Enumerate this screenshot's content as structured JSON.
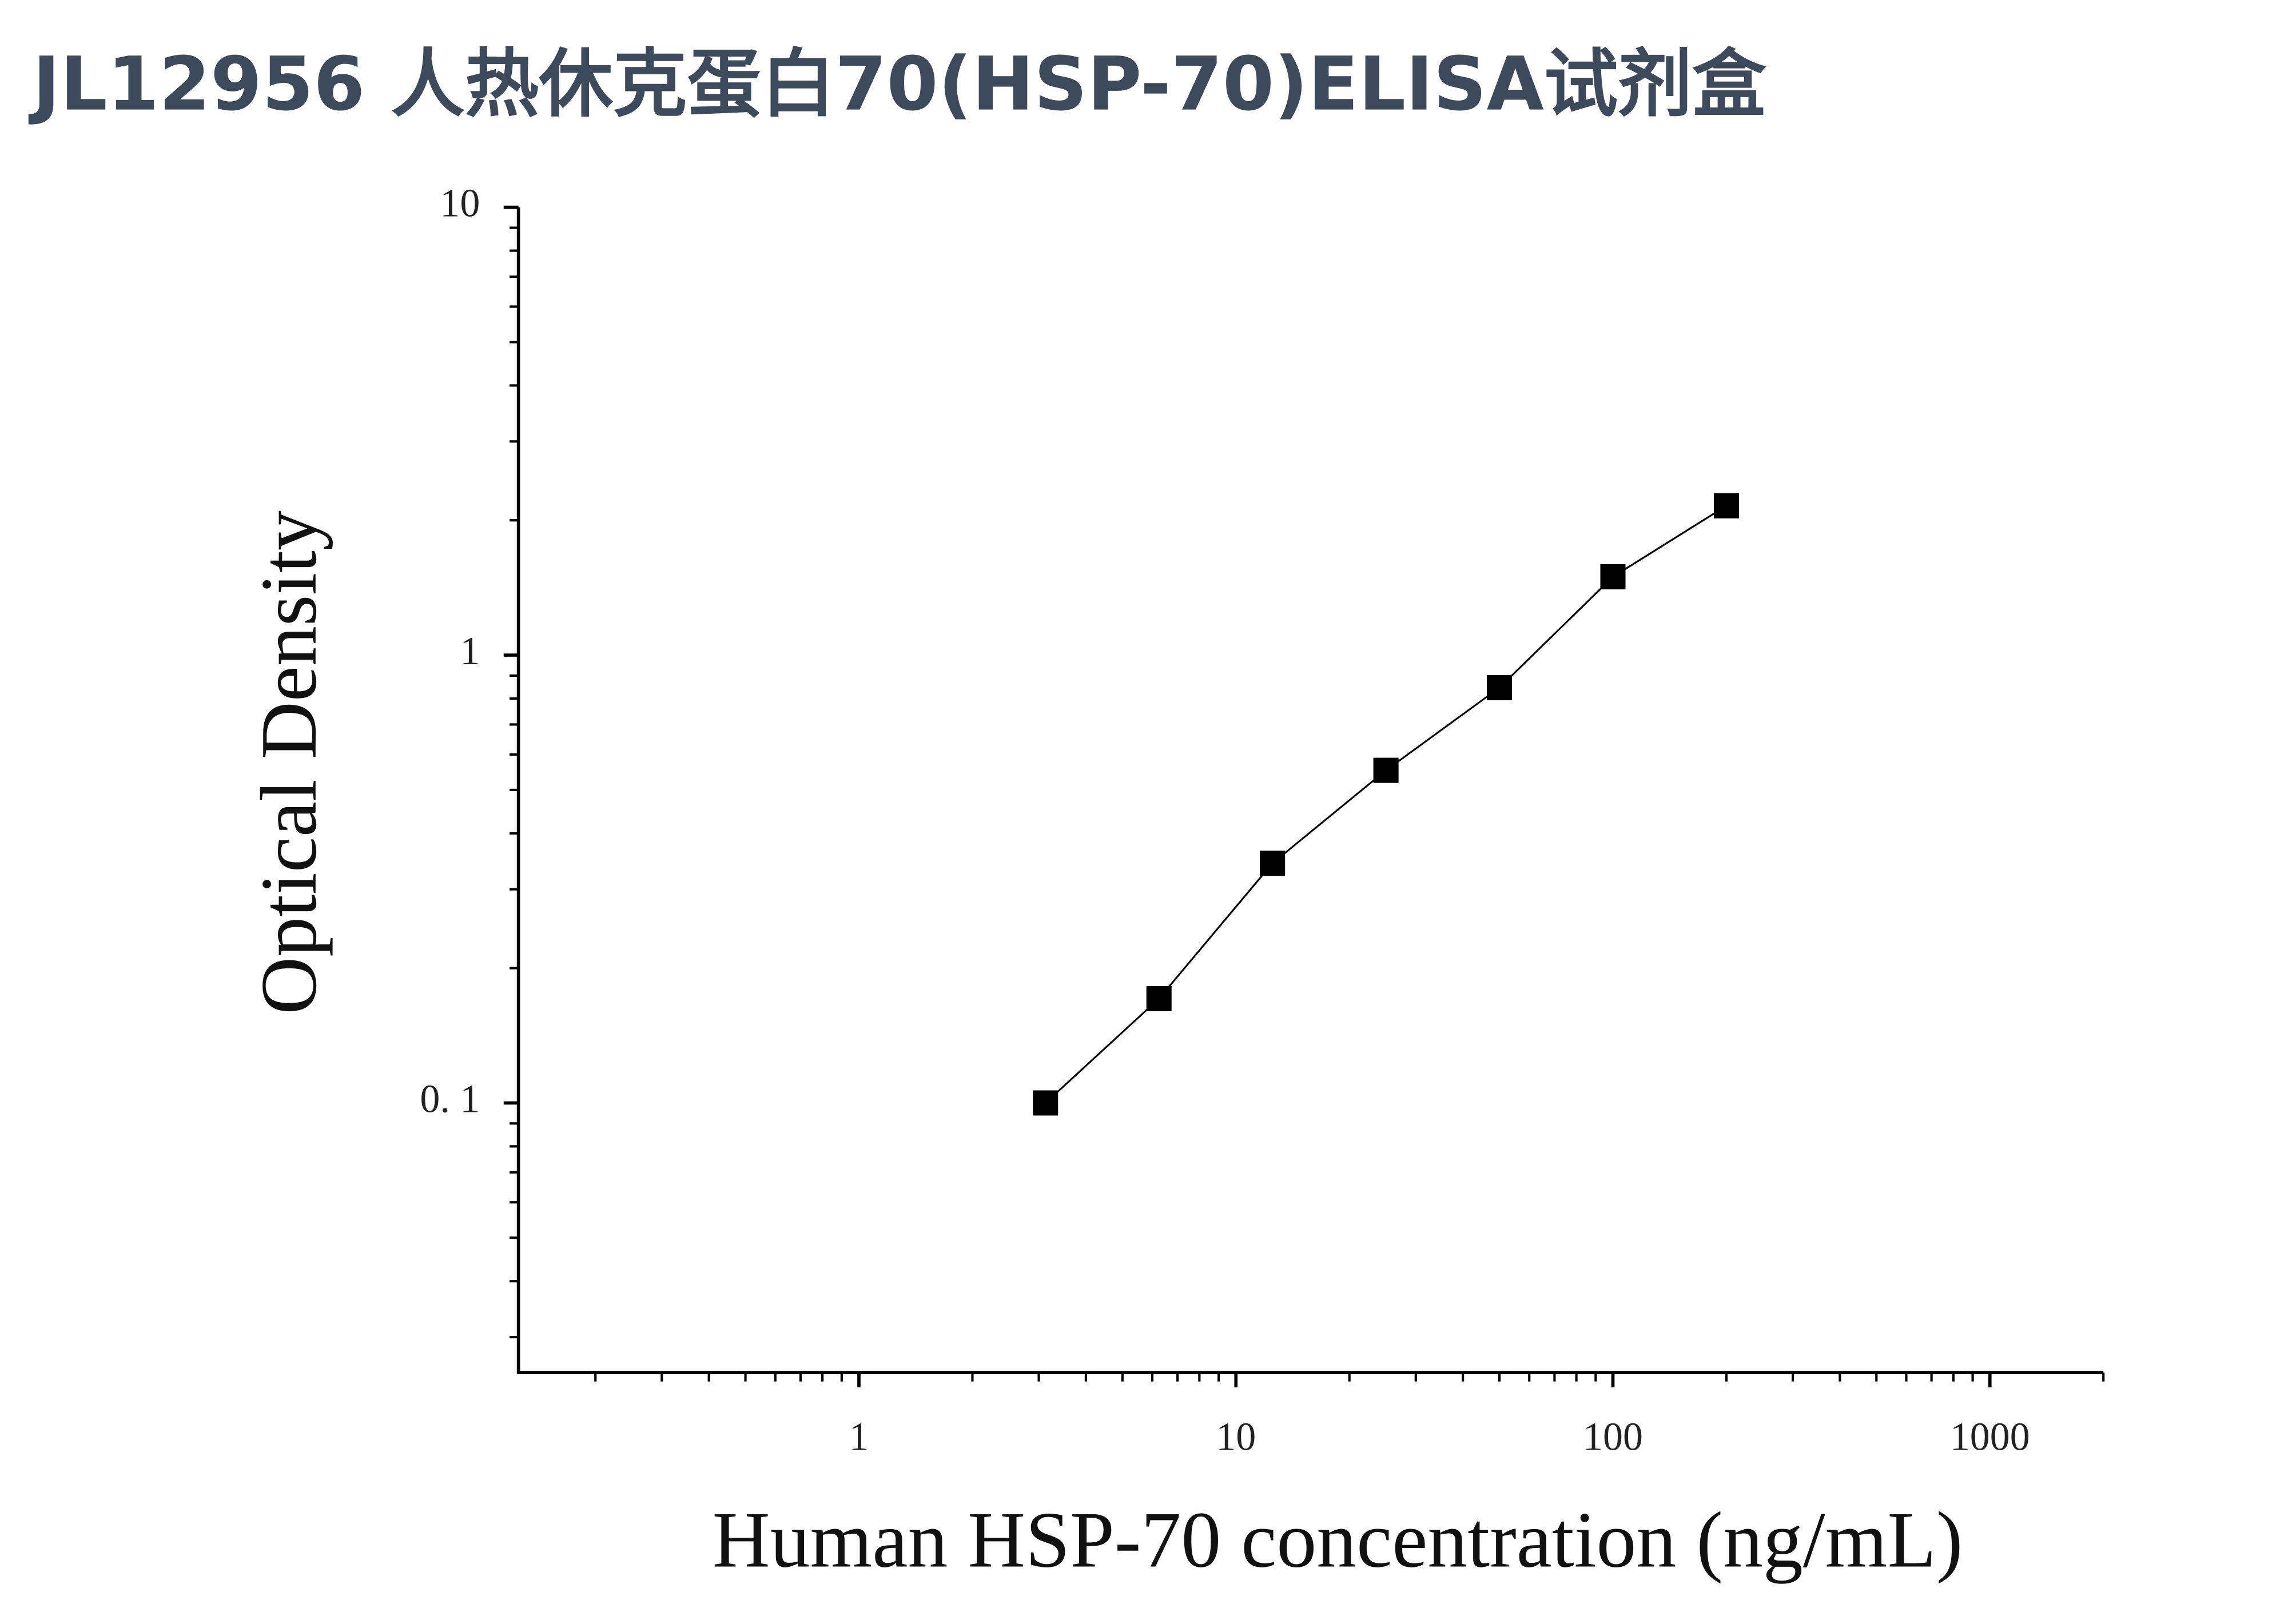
{
  "chart_data": {
    "type": "scatter",
    "title": "JL12956 人热休克蛋白70(HSP-70)ELISA试剂盒",
    "x_label": "Human HSP-70 concentration (ng/mL)",
    "y_label": "Optical Density",
    "x_log": true,
    "y_log": true,
    "xlim": [
      0.125,
      2000
    ],
    "ylim": [
      0.025,
      10
    ],
    "xticks": [
      1,
      10,
      100,
      1000
    ],
    "yticks": [
      {
        "value": 0.1,
        "label": "0. 1"
      },
      1,
      10
    ],
    "xminorticks": [
      0.2,
      0.3,
      0.4,
      0.5,
      0.6,
      0.7,
      0.8,
      0.9,
      2,
      3,
      4,
      5,
      6,
      7,
      8,
      9,
      20,
      30,
      40,
      50,
      60,
      70,
      80,
      90,
      200,
      300,
      400,
      500,
      600,
      700,
      800,
      900,
      2000
    ],
    "yminorticks": [
      0.03,
      0.04,
      0.05,
      0.06,
      0.07,
      0.08,
      0.09,
      0.2,
      0.3,
      0.4,
      0.5,
      0.6,
      0.7,
      0.8,
      0.9,
      2,
      3,
      4,
      5,
      6,
      7,
      8,
      9
    ],
    "x": [
      3.125,
      6.25,
      12.5,
      25,
      50,
      100,
      200
    ],
    "series": [
      {
        "color": "#000000",
        "values": [
          0.1,
          0.171,
          0.343,
          0.553,
          0.846,
          1.496,
          2.155
        ]
      }
    ],
    "fit_line": true
  }
}
